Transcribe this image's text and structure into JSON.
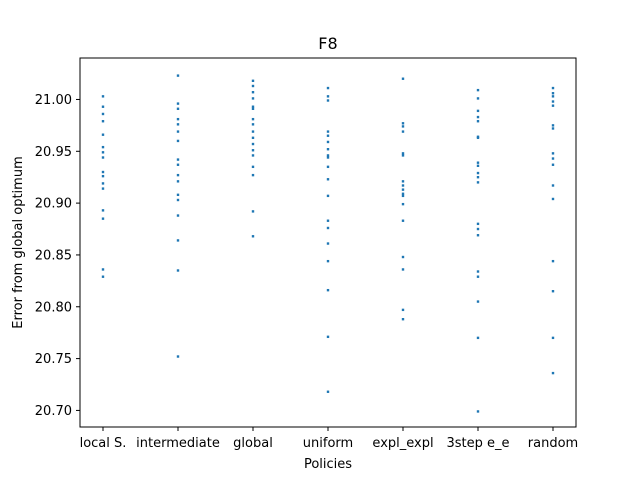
{
  "chart_data": {
    "type": "scatter",
    "title": "F8",
    "xlabel": "Policies",
    "ylabel": "Error from global optimum",
    "categories": [
      "local S.",
      "intermediate",
      "global",
      "uniform",
      "expl_expl",
      "3step e_e",
      "random"
    ],
    "ylim": [
      20.684,
      21.04
    ],
    "yticks": [
      20.7,
      20.75,
      20.8,
      20.85,
      20.9,
      20.95,
      21.0
    ],
    "ytick_labels": [
      "20.70",
      "20.75",
      "20.80",
      "20.85",
      "20.90",
      "20.95",
      "21.00"
    ],
    "grid": false,
    "marker_color": "#1f77b4",
    "series": [
      {
        "values": [
          21.003,
          20.993,
          20.986,
          20.979,
          20.966,
          20.954,
          20.949,
          20.944,
          20.93,
          20.926,
          20.919,
          20.914,
          20.893,
          20.885,
          20.836,
          20.829
        ]
      },
      {
        "values": [
          21.023,
          20.996,
          20.991,
          20.981,
          20.976,
          20.969,
          20.96,
          20.942,
          20.937,
          20.927,
          20.921,
          20.908,
          20.903,
          20.888,
          20.864,
          20.835,
          20.752
        ]
      },
      {
        "values": [
          21.018,
          21.013,
          21.007,
          21.001,
          20.993,
          20.991,
          20.981,
          20.976,
          20.969,
          20.963,
          20.957,
          20.951,
          20.946,
          20.935,
          20.927,
          20.892,
          20.868
        ]
      },
      {
        "values": [
          21.011,
          21.003,
          20.999,
          20.969,
          20.965,
          20.959,
          20.952,
          20.946,
          20.944,
          20.935,
          20.923,
          20.907,
          20.883,
          20.876,
          20.861,
          20.844,
          20.816,
          20.771,
          20.718
        ]
      },
      {
        "values": [
          21.02,
          20.977,
          20.974,
          20.969,
          20.948,
          20.946,
          20.921,
          20.917,
          20.913,
          20.909,
          20.907,
          20.899,
          20.883,
          20.848,
          20.836,
          20.797,
          20.788
        ]
      },
      {
        "values": [
          21.009,
          21.001,
          20.989,
          20.983,
          20.979,
          20.964,
          20.963,
          20.939,
          20.936,
          20.929,
          20.925,
          20.92,
          20.88,
          20.875,
          20.869,
          20.834,
          20.829,
          20.805,
          20.77,
          20.699
        ]
      },
      {
        "values": [
          21.011,
          21.006,
          21.003,
          20.998,
          20.994,
          20.975,
          20.972,
          20.948,
          20.943,
          20.937,
          20.917,
          20.904,
          20.844,
          20.815,
          20.77,
          20.736
        ]
      }
    ]
  }
}
